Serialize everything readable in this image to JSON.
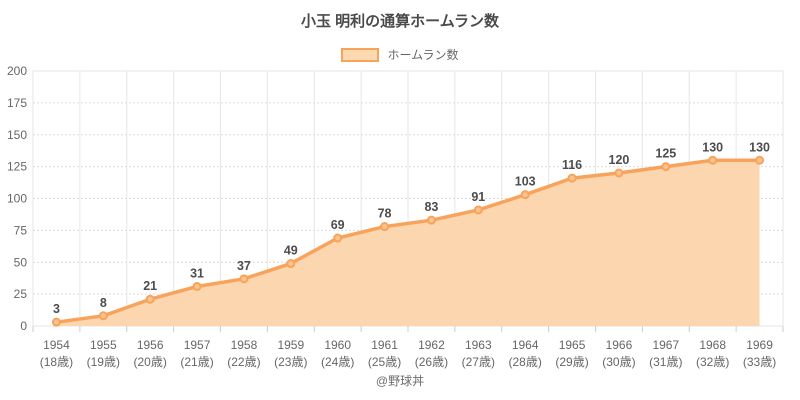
{
  "title": "小玉 明利の通算ホームラン数",
  "legend": {
    "label": "ホームラン数"
  },
  "footer": "@野球丼",
  "colors": {
    "line": "#f7a35c",
    "fill": "#fbd6ae",
    "marker_fill": "#fbc38e",
    "data_label": "#4d4d4d",
    "axis_text": "#666666",
    "grid_solid": "#e6e6e6",
    "grid_dotted": "#dcdcdc",
    "tick": "#cccccc"
  },
  "chart_data": {
    "type": "area",
    "title": "小玉 明利の通算ホームラン数",
    "legend_entries": [
      "ホームラン数"
    ],
    "legend_position": "top",
    "grid": true,
    "categories": [
      "1954",
      "1955",
      "1956",
      "1957",
      "1958",
      "1959",
      "1960",
      "1961",
      "1962",
      "1963",
      "1964",
      "1965",
      "1966",
      "1967",
      "1968",
      "1969"
    ],
    "age_labels": [
      "(18歳)",
      "(19歳)",
      "(20歳)",
      "(21歳)",
      "(22歳)",
      "(23歳)",
      "(24歳)",
      "(25歳)",
      "(26歳)",
      "(27歳)",
      "(28歳)",
      "(29歳)",
      "(30歳)",
      "(31歳)",
      "(32歳)",
      "(33歳)"
    ],
    "series": [
      {
        "name": "ホームラン数",
        "values": [
          3,
          8,
          21,
          31,
          37,
          49,
          69,
          78,
          83,
          91,
          103,
          116,
          120,
          125,
          130,
          130
        ]
      }
    ],
    "xlabel": "",
    "ylabel": "",
    "ylim": [
      0,
      200
    ],
    "yticks": [
      0,
      25,
      50,
      75,
      100,
      125,
      150,
      175,
      200
    ]
  }
}
